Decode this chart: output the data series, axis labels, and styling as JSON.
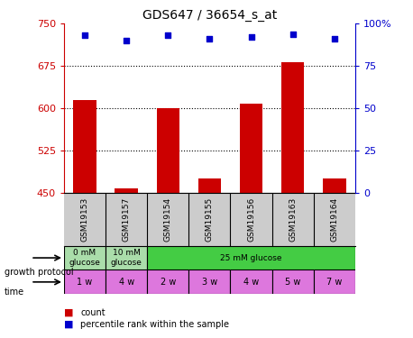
{
  "title": "GDS647 / 36654_s_at",
  "samples": [
    "GSM19153",
    "GSM19157",
    "GSM19154",
    "GSM19155",
    "GSM19156",
    "GSM19163",
    "GSM19164"
  ],
  "bar_values": [
    615,
    458,
    600,
    475,
    608,
    682,
    475
  ],
  "percentile_values": [
    93,
    90,
    93,
    91,
    92,
    94,
    91
  ],
  "ylim_left": [
    450,
    750
  ],
  "ylim_right": [
    0,
    100
  ],
  "yticks_left": [
    450,
    525,
    600,
    675,
    750
  ],
  "yticks_right": [
    0,
    25,
    50,
    75,
    100
  ],
  "ytick_labels_right": [
    "0",
    "25",
    "50",
    "75",
    "100%"
  ],
  "bar_color": "#cc0000",
  "dot_color": "#0000cc",
  "grid_color": "black",
  "time_labels": [
    "1 w",
    "4 w",
    "2 w",
    "3 w",
    "4 w",
    "5 w",
    "7 w"
  ],
  "time_color": "#dd77dd",
  "sample_bg_color": "#cccccc",
  "legend_count_color": "#cc0000",
  "legend_pct_color": "#0000cc",
  "growth_groups": [
    {
      "start": 0,
      "end": 0,
      "label": "0 mM\nglucose",
      "color": "#aaddaa"
    },
    {
      "start": 1,
      "end": 1,
      "label": "10 mM\nglucose",
      "color": "#aaddaa"
    },
    {
      "start": 2,
      "end": 6,
      "label": "25 mM glucose",
      "color": "#44cc44"
    }
  ]
}
